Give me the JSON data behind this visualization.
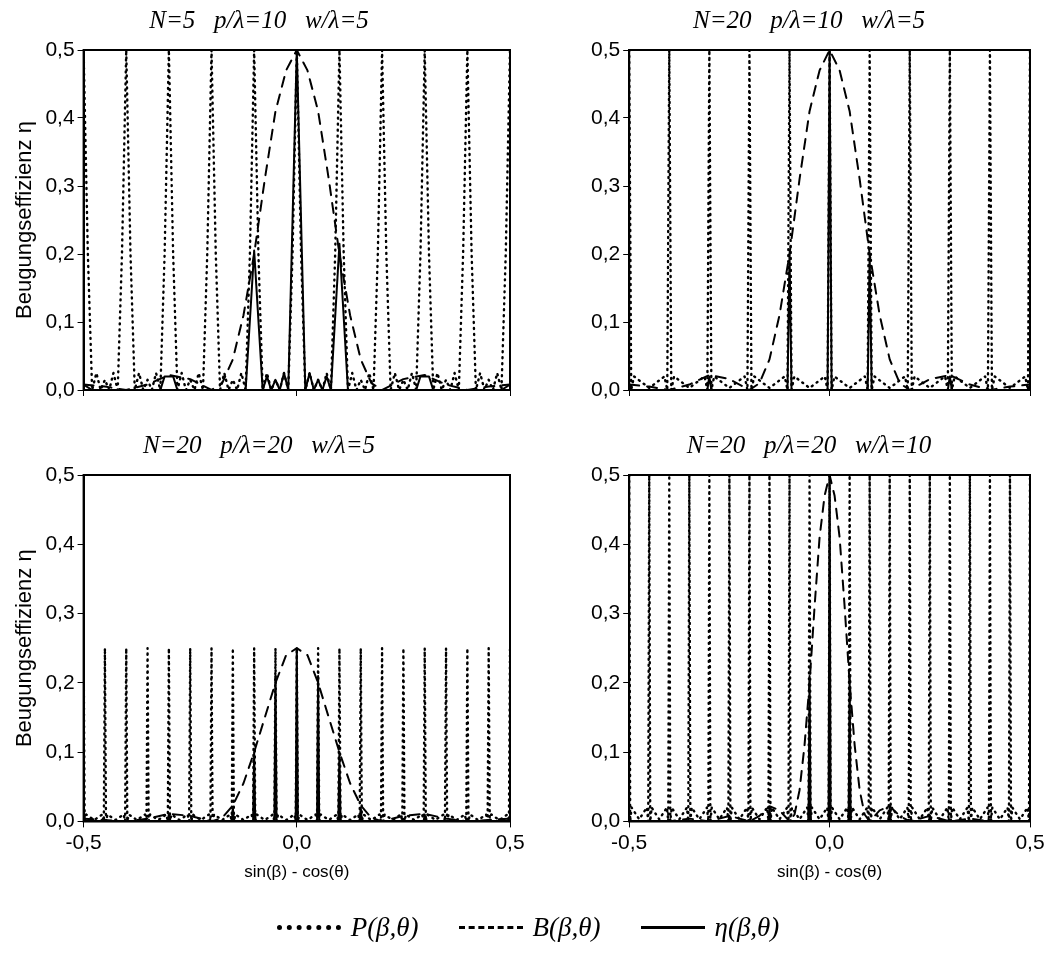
{
  "chart_data": [
    {
      "type": "line",
      "title": "N=5   p/λ=10   w/λ=5",
      "ylabel": "Beugungseffizienz η",
      "xlim": [
        -0.5,
        0.5
      ],
      "xticks": [
        {
          "value": -0.5,
          "label": null
        },
        {
          "value": 0,
          "label": null
        },
        {
          "value": 0.5,
          "label": null
        }
      ],
      "ylim": [
        0,
        0.5
      ],
      "yticks": [
        {
          "value": 0,
          "label": "0,0"
        },
        {
          "value": 0.1,
          "label": "0,1"
        },
        {
          "value": 0.2,
          "label": "0,2"
        },
        {
          "value": 0.3,
          "label": "0,3"
        },
        {
          "value": 0.4,
          "label": "0,4"
        },
        {
          "value": 0.5,
          "label": "0,5"
        }
      ],
      "tick_labels": "y",
      "marker": "none",
      "series": [
        {
          "color": "#000000",
          "line_style": "dotted",
          "x": [
            -0.5,
            -0.49,
            -0.48,
            -0.47,
            -0.46,
            -0.45,
            -0.44,
            -0.43,
            -0.42,
            -0.41,
            -0.4,
            -0.39,
            -0.38,
            -0.37,
            -0.36,
            -0.35,
            -0.34,
            -0.33,
            -0.32,
            -0.31,
            -0.3,
            -0.29,
            -0.28,
            -0.27,
            -0.26,
            -0.25,
            -0.24,
            -0.23,
            -0.22,
            -0.21,
            -0.2,
            -0.19,
            -0.18,
            -0.17,
            -0.16,
            -0.15,
            -0.14,
            -0.13,
            -0.12,
            -0.11,
            -0.1,
            -0.09,
            -0.08,
            -0.07,
            -0.06,
            -0.05,
            -0.04,
            -0.03,
            -0.02,
            -0.01,
            0,
            0.01,
            0.02,
            0.03,
            0.04,
            0.05,
            0.06,
            0.07,
            0.08,
            0.09,
            0.1,
            0.11,
            0.12,
            0.13,
            0.14,
            0.15,
            0.16,
            0.17,
            0.18,
            0.19,
            0.2,
            0.21,
            0.22,
            0.23,
            0.24,
            0.25,
            0.26,
            0.27,
            0.28,
            0.29,
            0.3,
            0.31,
            0.32,
            0.33,
            0.34,
            0.35,
            0.36,
            0.37,
            0.38,
            0.39,
            0.4,
            0.41,
            0.42,
            0.43,
            0.44,
            0.45,
            0.46,
            0.47,
            0.48,
            0.49,
            0.5
          ],
          "values": [
            0.5,
            0.2,
            0,
            0.025,
            0,
            0.015,
            0,
            0.025,
            0,
            0.2,
            0.5,
            0.2,
            0,
            0.025,
            0,
            0.015,
            0,
            0.025,
            0,
            0.2,
            0.5,
            0.2,
            0,
            0.025,
            0,
            0.015,
            0,
            0.025,
            0,
            0.2,
            0.5,
            0.2,
            0,
            0.025,
            0,
            0.015,
            0,
            0.025,
            0,
            0.2,
            0.5,
            0.2,
            0,
            0.025,
            0,
            0.015,
            0,
            0.025,
            0,
            0.2,
            0.5,
            0.2,
            0,
            0.025,
            0,
            0.015,
            0,
            0.025,
            0,
            0.2,
            0.5,
            0.2,
            0,
            0.025,
            0,
            0.015,
            0,
            0.025,
            0,
            0.2,
            0.5,
            0.2,
            0,
            0.025,
            0,
            0.015,
            0,
            0.025,
            0,
            0.2,
            0.5,
            0.2,
            0,
            0.025,
            0,
            0.015,
            0,
            0.025,
            0,
            0.2,
            0.5,
            0.2,
            0,
            0.025,
            0,
            0.015,
            0,
            0.025,
            0,
            0.2,
            0.5
          ]
        },
        {
          "color": "#000000",
          "line_style": "dashed",
          "x": [
            -0.5,
            -0.45,
            -0.4,
            -0.35,
            -0.3,
            -0.25,
            -0.2,
            -0.175,
            -0.15,
            -0.125,
            -0.1,
            -0.075,
            -0.05,
            -0.025,
            0,
            0.025,
            0.05,
            0.075,
            0.1,
            0.125,
            0.15,
            0.175,
            0.2,
            0.25,
            0.3,
            0.35,
            0.4,
            0.45,
            0.5
          ],
          "values": [
            0.008,
            0.005,
            0,
            0.008,
            0.022,
            0.016,
            0,
            0.01,
            0.045,
            0.11,
            0.2,
            0.31,
            0.41,
            0.47,
            0.5,
            0.47,
            0.41,
            0.31,
            0.2,
            0.11,
            0.045,
            0.01,
            0,
            0.016,
            0.022,
            0.008,
            0,
            0.005,
            0.008
          ]
        },
        {
          "color": "#000000",
          "line_style": "solid",
          "x": [
            -0.5,
            -0.48,
            -0.32,
            -0.31,
            -0.29,
            -0.28,
            -0.12,
            -0.1,
            -0.08,
            -0.07,
            -0.06,
            -0.05,
            -0.04,
            -0.03,
            -0.02,
            0,
            0.02,
            0.03,
            0.04,
            0.05,
            0.06,
            0.07,
            0.08,
            0.1,
            0.12,
            0.28,
            0.29,
            0.31,
            0.32,
            0.48,
            0.5
          ],
          "values": [
            0.008,
            0,
            0,
            0.02,
            0.02,
            0,
            0,
            0.205,
            0,
            0.02,
            0,
            0.015,
            0,
            0.025,
            0,
            0.5,
            0,
            0.025,
            0,
            0.015,
            0,
            0.02,
            0,
            0.215,
            0,
            0,
            0.02,
            0.02,
            0,
            0,
            0.008
          ]
        }
      ]
    },
    {
      "type": "line",
      "title": "N=20   p/λ=10   w/λ=5",
      "xlim": [
        -0.5,
        0.5
      ],
      "xticks": [
        {
          "value": -0.5,
          "label": null
        },
        {
          "value": 0,
          "label": null
        },
        {
          "value": 0.5,
          "label": null
        }
      ],
      "ylim": [
        0,
        0.5
      ],
      "yticks": [
        {
          "value": 0,
          "label": "0,0"
        },
        {
          "value": 0.1,
          "label": "0,1"
        },
        {
          "value": 0.2,
          "label": "0,2"
        },
        {
          "value": 0.3,
          "label": "0,3"
        },
        {
          "value": 0.4,
          "label": "0,4"
        },
        {
          "value": 0.5,
          "label": "0,5"
        }
      ],
      "tick_labels": "y",
      "marker": "none",
      "series": [
        {
          "color": "#000000",
          "line_style": "dotted",
          "x": [
            -0.5,
            -0.495,
            -0.488,
            -0.45,
            -0.412,
            -0.405,
            -0.4,
            -0.395,
            -0.388,
            -0.35,
            -0.312,
            -0.305,
            -0.3,
            -0.295,
            -0.288,
            -0.25,
            -0.212,
            -0.205,
            -0.2,
            -0.195,
            -0.188,
            -0.15,
            -0.112,
            -0.105,
            -0.1,
            -0.095,
            -0.088,
            -0.05,
            -0.012,
            -0.005,
            0,
            0.005,
            0.012,
            0.05,
            0.088,
            0.095,
            0.1,
            0.105,
            0.112,
            0.15,
            0.188,
            0.195,
            0.2,
            0.205,
            0.212,
            0.25,
            0.288,
            0.295,
            0.3,
            0.305,
            0.312,
            0.35,
            0.388,
            0.395,
            0.4,
            0.405,
            0.412,
            0.45,
            0.488,
            0.495,
            0.5
          ],
          "values": [
            0.5,
            0,
            0.02,
            0.003,
            0.02,
            0,
            0.5,
            0,
            0.02,
            0.003,
            0.02,
            0,
            0.5,
            0,
            0.02,
            0.003,
            0.02,
            0,
            0.5,
            0,
            0.02,
            0.003,
            0.02,
            0,
            0.5,
            0,
            0.02,
            0.003,
            0.02,
            0,
            0.5,
            0,
            0.02,
            0.003,
            0.02,
            0,
            0.5,
            0,
            0.02,
            0.003,
            0.02,
            0,
            0.5,
            0,
            0.02,
            0.003,
            0.02,
            0,
            0.5,
            0,
            0.02,
            0.003,
            0.02,
            0,
            0.5,
            0,
            0.02,
            0.003,
            0.02,
            0,
            0.5
          ]
        },
        {
          "color": "#000000",
          "line_style": "dashed",
          "x": [
            -0.5,
            -0.45,
            -0.4,
            -0.35,
            -0.3,
            -0.25,
            -0.2,
            -0.175,
            -0.15,
            -0.125,
            -0.1,
            -0.075,
            -0.05,
            -0.025,
            0,
            0.025,
            0.05,
            0.075,
            0.1,
            0.125,
            0.15,
            0.175,
            0.2,
            0.25,
            0.3,
            0.35,
            0.4,
            0.45,
            0.5
          ],
          "values": [
            0.008,
            0.005,
            0,
            0.008,
            0.022,
            0.016,
            0,
            0.01,
            0.045,
            0.11,
            0.2,
            0.31,
            0.41,
            0.47,
            0.5,
            0.47,
            0.41,
            0.31,
            0.2,
            0.11,
            0.045,
            0.01,
            0,
            0.016,
            0.022,
            0.008,
            0,
            0.005,
            0.008
          ]
        },
        {
          "color": "#000000",
          "line_style": "solid",
          "x": [
            -0.5,
            -0.495,
            -0.305,
            -0.3,
            -0.295,
            -0.105,
            -0.1,
            -0.095,
            -0.005,
            0,
            0.005,
            0.095,
            0.1,
            0.105,
            0.295,
            0.3,
            0.305,
            0.495,
            0.5
          ],
          "values": [
            0.008,
            0,
            0,
            0.02,
            0,
            0,
            0.2,
            0,
            0,
            0.5,
            0,
            0,
            0.2,
            0,
            0,
            0.02,
            0,
            0,
            0.008
          ]
        }
      ]
    },
    {
      "type": "line",
      "title": "N=20   p/λ=20   w/λ=5",
      "xlabel": "sin(β) - cos(θ)",
      "ylabel": "Beugungseffizienz η",
      "xlim": [
        -0.5,
        0.5
      ],
      "xticks": [
        {
          "value": -0.5,
          "label": "-0,5"
        },
        {
          "value": 0,
          "label": "0,0"
        },
        {
          "value": 0.5,
          "label": "0,5"
        }
      ],
      "ylim": [
        0,
        0.5
      ],
      "yticks": [
        {
          "value": 0,
          "label": "0,0"
        },
        {
          "value": 0.1,
          "label": "0,1"
        },
        {
          "value": 0.2,
          "label": "0,2"
        },
        {
          "value": 0.3,
          "label": "0,3"
        },
        {
          "value": 0.4,
          "label": "0,4"
        },
        {
          "value": 0.5,
          "label": "0,5"
        }
      ],
      "marker": "none",
      "series": [
        {
          "color": "#000000",
          "line_style": "dotted",
          "x": [
            -0.5,
            -0.4975,
            -0.494,
            -0.475,
            -0.456,
            -0.4525,
            -0.45,
            -0.4475,
            -0.444,
            -0.425,
            -0.406,
            -0.4025,
            -0.4,
            -0.3975,
            -0.394,
            -0.375,
            -0.356,
            -0.3525,
            -0.35,
            -0.3475,
            -0.344,
            -0.325,
            -0.306,
            -0.3025,
            -0.3,
            -0.2975,
            -0.294,
            -0.275,
            -0.256,
            -0.2525,
            -0.25,
            -0.2475,
            -0.244,
            -0.225,
            -0.206,
            -0.2025,
            -0.2,
            -0.1975,
            -0.194,
            -0.175,
            -0.156,
            -0.1525,
            -0.15,
            -0.1475,
            -0.144,
            -0.125,
            -0.106,
            -0.1025,
            -0.1,
            -0.0975,
            -0.094,
            -0.075,
            -0.056,
            -0.0525,
            -0.05,
            -0.0475,
            -0.044,
            -0.025,
            -0.006,
            -0.0025,
            0,
            0.0025,
            0.006,
            0.025,
            0.044,
            0.0475,
            0.05,
            0.0525,
            0.056,
            0.075,
            0.094,
            0.0975,
            0.1,
            0.1025,
            0.106,
            0.125,
            0.144,
            0.1475,
            0.15,
            0.1525,
            0.156,
            0.175,
            0.194,
            0.1975,
            0.2,
            0.2025,
            0.206,
            0.225,
            0.244,
            0.2475,
            0.25,
            0.2525,
            0.256,
            0.275,
            0.294,
            0.2975,
            0.3,
            0.3025,
            0.306,
            0.325,
            0.344,
            0.3475,
            0.35,
            0.3525,
            0.356,
            0.375,
            0.394,
            0.3975,
            0.4,
            0.4025,
            0.406,
            0.425,
            0.444,
            0.4475,
            0.45,
            0.4525,
            0.456,
            0.475,
            0.494,
            0.4975,
            0.5
          ],
          "values": [
            0.25,
            0,
            0.01,
            0.002,
            0.01,
            0,
            0.25,
            0,
            0.01,
            0.002,
            0.01,
            0,
            0.25,
            0,
            0.01,
            0.002,
            0.01,
            0,
            0.25,
            0,
            0.01,
            0.002,
            0.01,
            0,
            0.25,
            0,
            0.01,
            0.002,
            0.01,
            0,
            0.25,
            0,
            0.01,
            0.002,
            0.01,
            0,
            0.25,
            0,
            0.01,
            0.002,
            0.01,
            0,
            0.25,
            0,
            0.01,
            0.002,
            0.01,
            0,
            0.25,
            0,
            0.01,
            0.002,
            0.01,
            0,
            0.25,
            0,
            0.01,
            0.002,
            0.01,
            0,
            0.25,
            0,
            0.01,
            0.002,
            0.01,
            0,
            0.25,
            0,
            0.01,
            0.002,
            0.01,
            0,
            0.25,
            0,
            0.01,
            0.002,
            0.01,
            0,
            0.25,
            0,
            0.01,
            0.002,
            0.01,
            0,
            0.25,
            0,
            0.01,
            0.002,
            0.01,
            0,
            0.25,
            0,
            0.01,
            0.002,
            0.01,
            0,
            0.25,
            0,
            0.01,
            0.002,
            0.01,
            0,
            0.25,
            0,
            0.01,
            0.002,
            0.01,
            0,
            0.25,
            0,
            0.01,
            0.002,
            0.01,
            0,
            0.25,
            0,
            0.01,
            0.002,
            0.01,
            0,
            0.25
          ]
        },
        {
          "color": "#000000",
          "line_style": "dashed",
          "x": [
            -0.5,
            -0.45,
            -0.4,
            -0.35,
            -0.3,
            -0.25,
            -0.2,
            -0.175,
            -0.15,
            -0.125,
            -0.1,
            -0.075,
            -0.05,
            -0.025,
            0,
            0.025,
            0.05,
            0.075,
            0.1,
            0.125,
            0.15,
            0.175,
            0.2,
            0.25,
            0.3,
            0.35,
            0.4,
            0.45,
            0.5
          ],
          "values": [
            0.004,
            0.002,
            0,
            0.004,
            0.011,
            0.008,
            0,
            0.005,
            0.023,
            0.055,
            0.1,
            0.15,
            0.2,
            0.24,
            0.25,
            0.24,
            0.2,
            0.15,
            0.1,
            0.055,
            0.023,
            0.005,
            0,
            0.008,
            0.011,
            0.004,
            0,
            0.002,
            0.004
          ]
        },
        {
          "color": "#000000",
          "line_style": "solid",
          "x": [
            -0.5,
            -0.3025,
            -0.3,
            -0.2975,
            -0.1525,
            -0.15,
            -0.1475,
            -0.1025,
            -0.1,
            -0.0975,
            -0.0525,
            -0.05,
            -0.0475,
            -0.0025,
            0,
            0.0025,
            0.0475,
            0.05,
            0.0525,
            0.0975,
            0.1,
            0.1025,
            0.1475,
            0.15,
            0.1525,
            0.2975,
            0.3,
            0.3025,
            0.5
          ],
          "values": [
            0,
            0,
            0.01,
            0,
            0,
            0.02,
            0,
            0,
            0.1,
            0,
            0,
            0.21,
            0,
            0,
            0.25,
            0,
            0,
            0.21,
            0,
            0,
            0.1,
            0,
            0,
            0.02,
            0,
            0,
            0.01,
            0,
            0
          ]
        }
      ]
    },
    {
      "type": "line",
      "title": "N=20   p/λ=20   w/λ=10",
      "xlabel": "sin(β) - cos(θ)",
      "xlim": [
        -0.5,
        0.5
      ],
      "xticks": [
        {
          "value": -0.5,
          "label": "-0,5"
        },
        {
          "value": 0,
          "label": "0,0"
        },
        {
          "value": 0.5,
          "label": "0,5"
        }
      ],
      "ylim": [
        0,
        0.5
      ],
      "yticks": [
        {
          "value": 0,
          "label": "0,0"
        },
        {
          "value": 0.1,
          "label": "0,1"
        },
        {
          "value": 0.2,
          "label": "0,2"
        },
        {
          "value": 0.3,
          "label": "0,3"
        },
        {
          "value": 0.4,
          "label": "0,4"
        },
        {
          "value": 0.5,
          "label": "0,5"
        }
      ],
      "marker": "none",
      "legend": "bottom",
      "series": [
        {
          "name": "P(β,θ)",
          "color": "#000000",
          "line_style": "dotted",
          "x": [
            -0.5,
            -0.4975,
            -0.494,
            -0.475,
            -0.456,
            -0.4525,
            -0.45,
            -0.4475,
            -0.444,
            -0.425,
            -0.406,
            -0.4025,
            -0.4,
            -0.3975,
            -0.394,
            -0.375,
            -0.356,
            -0.3525,
            -0.35,
            -0.3475,
            -0.344,
            -0.325,
            -0.306,
            -0.3025,
            -0.3,
            -0.2975,
            -0.294,
            -0.275,
            -0.256,
            -0.2525,
            -0.25,
            -0.2475,
            -0.244,
            -0.225,
            -0.206,
            -0.2025,
            -0.2,
            -0.1975,
            -0.194,
            -0.175,
            -0.156,
            -0.1525,
            -0.15,
            -0.1475,
            -0.144,
            -0.125,
            -0.106,
            -0.1025,
            -0.1,
            -0.0975,
            -0.094,
            -0.075,
            -0.056,
            -0.0525,
            -0.05,
            -0.0475,
            -0.044,
            -0.025,
            -0.006,
            -0.0025,
            0,
            0.0025,
            0.006,
            0.025,
            0.044,
            0.0475,
            0.05,
            0.0525,
            0.056,
            0.075,
            0.094,
            0.0975,
            0.1,
            0.1025,
            0.106,
            0.125,
            0.144,
            0.1475,
            0.15,
            0.1525,
            0.156,
            0.175,
            0.194,
            0.1975,
            0.2,
            0.2025,
            0.206,
            0.225,
            0.244,
            0.2475,
            0.25,
            0.2525,
            0.256,
            0.275,
            0.294,
            0.2975,
            0.3,
            0.3025,
            0.306,
            0.325,
            0.344,
            0.3475,
            0.35,
            0.3525,
            0.356,
            0.375,
            0.394,
            0.3975,
            0.4,
            0.4025,
            0.406,
            0.425,
            0.444,
            0.4475,
            0.45,
            0.4525,
            0.456,
            0.475,
            0.494,
            0.4975,
            0.5
          ],
          "values": [
            0.5,
            0,
            0.02,
            0.003,
            0.02,
            0,
            0.5,
            0,
            0.02,
            0.003,
            0.02,
            0,
            0.5,
            0,
            0.02,
            0.003,
            0.02,
            0,
            0.5,
            0,
            0.02,
            0.003,
            0.02,
            0,
            0.5,
            0,
            0.02,
            0.003,
            0.02,
            0,
            0.5,
            0,
            0.02,
            0.003,
            0.02,
            0,
            0.5,
            0,
            0.02,
            0.003,
            0.02,
            0,
            0.5,
            0,
            0.02,
            0.003,
            0.02,
            0,
            0.5,
            0,
            0.02,
            0.003,
            0.02,
            0,
            0.5,
            0,
            0.02,
            0.003,
            0.02,
            0,
            0.5,
            0,
            0.02,
            0.003,
            0.02,
            0,
            0.5,
            0,
            0.02,
            0.003,
            0.02,
            0,
            0.5,
            0,
            0.02,
            0.003,
            0.02,
            0,
            0.5,
            0,
            0.02,
            0.003,
            0.02,
            0,
            0.5,
            0,
            0.02,
            0.003,
            0.02,
            0,
            0.5,
            0,
            0.02,
            0.003,
            0.02,
            0,
            0.5,
            0,
            0.02,
            0.003,
            0.02,
            0,
            0.5,
            0,
            0.02,
            0.003,
            0.02,
            0,
            0.5,
            0,
            0.02,
            0.003,
            0.02,
            0,
            0.5,
            0,
            0.02,
            0.003,
            0.02,
            0,
            0.5
          ]
        },
        {
          "name": "B(β,θ)",
          "color": "#000000",
          "line_style": "dashed",
          "x": [
            -0.5,
            -0.4,
            -0.35,
            -0.3,
            -0.25,
            -0.2,
            -0.175,
            -0.15,
            -0.125,
            -0.1,
            -0.0875,
            -0.075,
            -0.0625,
            -0.05,
            -0.0375,
            -0.025,
            -0.0125,
            0,
            0.0125,
            0.025,
            0.0375,
            0.05,
            0.0625,
            0.075,
            0.0875,
            0.1,
            0.125,
            0.15,
            0.175,
            0.2,
            0.25,
            0.3,
            0.35,
            0.4,
            0.5
          ],
          "values": [
            0,
            0,
            0.004,
            0,
            0.008,
            0,
            0.008,
            0.022,
            0.016,
            0,
            0.01,
            0.045,
            0.11,
            0.2,
            0.31,
            0.41,
            0.47,
            0.5,
            0.47,
            0.41,
            0.31,
            0.2,
            0.11,
            0.045,
            0.01,
            0,
            0.016,
            0.022,
            0.008,
            0,
            0.008,
            0,
            0.004,
            0,
            0
          ]
        },
        {
          "name": "η(β,θ)",
          "color": "#000000",
          "line_style": "solid",
          "x": [
            -0.5,
            -0.2525,
            -0.25,
            -0.2475,
            -0.1525,
            -0.15,
            -0.1475,
            -0.0525,
            -0.05,
            -0.0475,
            -0.0025,
            0,
            0.0025,
            0.0475,
            0.05,
            0.0525,
            0.1475,
            0.15,
            0.1525,
            0.2475,
            0.25,
            0.2525,
            0.5
          ],
          "values": [
            0,
            0,
            0.008,
            0,
            0,
            0.02,
            0,
            0,
            0.21,
            0,
            0,
            0.5,
            0,
            0,
            0.21,
            0,
            0,
            0.02,
            0,
            0,
            0.008,
            0,
            0
          ]
        }
      ]
    }
  ]
}
